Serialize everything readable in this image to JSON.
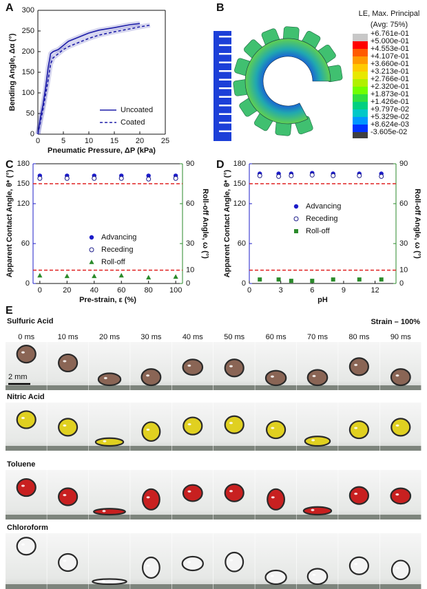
{
  "chart_data": [
    {
      "type": "line",
      "label": "A",
      "xlabel": "Pneumatic Pressure, ΔP (kPa)",
      "ylabel": "Bending Angle, Δα (°)",
      "xlim": [
        0,
        25
      ],
      "xticks": [
        0,
        5,
        10,
        15,
        20,
        25
      ],
      "ylim": [
        0,
        300
      ],
      "yticks": [
        0,
        50,
        100,
        150,
        200,
        250,
        300
      ],
      "legend": "lower right",
      "series": [
        {
          "name": "Uncoated",
          "color": "#1c1ca8",
          "dash": false,
          "x": [
            0,
            0.5,
            1,
            1.5,
            2,
            2.5,
            3,
            4,
            5,
            6,
            8,
            10,
            12,
            15,
            18,
            20
          ],
          "values": [
            0,
            40,
            70,
            110,
            160,
            195,
            200,
            205,
            215,
            225,
            235,
            245,
            252,
            258,
            265,
            268
          ]
        },
        {
          "name": "Coated",
          "color": "#1c1ca8",
          "dash": true,
          "x": [
            0,
            0.5,
            1,
            2,
            2.5,
            3,
            4,
            5,
            6,
            8,
            10,
            12,
            15,
            18,
            20,
            22
          ],
          "values": [
            0,
            30,
            60,
            130,
            170,
            185,
            195,
            205,
            212,
            222,
            232,
            240,
            248,
            255,
            260,
            264
          ]
        }
      ]
    },
    {
      "type": "scatter",
      "label": "C",
      "xlabel": "Pre-strain, ε (%)",
      "ylabel": "Apparent Contact Angle, θ* (°)",
      "y2label": "Roll-off Angle, ω (°)",
      "xlim": [
        -5,
        105
      ],
      "xticks": [
        0,
        20,
        40,
        60,
        80,
        100
      ],
      "ylim": [
        0,
        180
      ],
      "yticks": [
        0,
        60,
        120,
        180
      ],
      "y_color": "#1c1cc8",
      "y2lim": [
        0,
        90
      ],
      "y2ticks": [
        0,
        30,
        60,
        90
      ],
      "y2_color": "#2a8a2a",
      "legend": "center",
      "reference_lines": [
        {
          "axis": "y",
          "value": 150,
          "color": "#e02020"
        },
        {
          "axis": "y2",
          "value": 10,
          "color": "#e02020"
        }
      ],
      "x": [
        0,
        20,
        40,
        60,
        80,
        100
      ],
      "series": [
        {
          "name": "Advancing",
          "marker": "circle",
          "color": "#1c1cc8",
          "values": [
            162,
            162,
            162,
            162,
            162,
            162
          ]
        },
        {
          "name": "Receding",
          "marker": "open-circle",
          "color": "#1c1c8a",
          "values": [
            158,
            158,
            158,
            158,
            157,
            158
          ]
        },
        {
          "name": "Roll-off",
          "marker": "triangle",
          "color": "#2a8a2a",
          "axis": "y2",
          "values": [
            6,
            5.5,
            5.5,
            6,
            4.5,
            5
          ]
        }
      ]
    },
    {
      "type": "scatter",
      "label": "D",
      "xlabel": "pH",
      "ylabel": "Apparent Contact Angle, θ* (°)",
      "y2label": "Roll-off Angle, ω (°)",
      "xlim": [
        0,
        14
      ],
      "xticks": [
        0,
        3,
        6,
        9,
        12
      ],
      "ylim": [
        0,
        180
      ],
      "yticks": [
        0,
        60,
        120,
        180
      ],
      "y_color": "#1c1cc8",
      "y2lim": [
        0,
        90
      ],
      "y2ticks": [
        0,
        30,
        60,
        90
      ],
      "y2_color": "#2a8a2a",
      "legend": "upper center",
      "reference_lines": [
        {
          "axis": "y",
          "value": 150,
          "color": "#e02020"
        },
        {
          "axis": "y2",
          "value": 10,
          "color": "#e02020"
        }
      ],
      "x": [
        1,
        2.8,
        4,
        6,
        8,
        10.5,
        12.6
      ],
      "series": [
        {
          "name": "Advancing",
          "marker": "circle",
          "color": "#1c1cc8",
          "values": [
            165,
            165,
            165,
            166,
            165,
            165,
            165
          ]
        },
        {
          "name": "Receding",
          "marker": "open-circle",
          "color": "#1c1c8a",
          "values": [
            162,
            161,
            162,
            163,
            162,
            162,
            161
          ]
        },
        {
          "name": "Roll-off",
          "marker": "square",
          "color": "#2a8a2a",
          "axis": "y2",
          "values": [
            3,
            3,
            2,
            2,
            3,
            3,
            3
          ]
        }
      ]
    }
  ],
  "colormap": {
    "label": "B",
    "title": "LE, Max. Principal",
    "subtitle": "(Avg: 75%)",
    "levels": [
      {
        "value": 0.6761,
        "label": "+6.761e-01"
      },
      {
        "value": 0.5,
        "label": "+5.000e-01"
      },
      {
        "value": 0.4553,
        "label": "+4.553e-01"
      },
      {
        "value": 0.4107,
        "label": "+4.107e-01"
      },
      {
        "value": 0.366,
        "label": "+3.660e-01"
      },
      {
        "value": 0.3213,
        "label": "+3.213e-01"
      },
      {
        "value": 0.2766,
        "label": "+2.766e-01"
      },
      {
        "value": 0.232,
        "label": "+2.320e-01"
      },
      {
        "value": 0.1873,
        "label": "+1.873e-01"
      },
      {
        "value": 0.1426,
        "label": "+1.426e-01"
      },
      {
        "value": 0.09797,
        "label": "+9.797e-02"
      },
      {
        "value": 0.05329,
        "label": "+5.329e-02"
      },
      {
        "value": 0.008624,
        "label": "+8.624e-03"
      },
      {
        "value": -0.03605,
        "label": "-3.605e-02"
      }
    ],
    "colors": [
      "#c8c8c8",
      "#ff0000",
      "#ff5a00",
      "#ff9a00",
      "#ffca00",
      "#e8e800",
      "#b0f000",
      "#70ff00",
      "#30e040",
      "#00d080",
      "#00c8c8",
      "#0096ff",
      "#0032ff"
    ]
  },
  "sequences": {
    "label": "E",
    "strain": "Strain – 100%",
    "scale": "2 mm",
    "times": [
      "0 ms",
      "10 ms",
      "20 ms",
      "30 ms",
      "40 ms",
      "50 ms",
      "60 ms",
      "70 ms",
      "80 ms",
      "90 ms"
    ],
    "rows": [
      {
        "name": "Sulfuric Acid",
        "color": "#a8806e",
        "drop_color": "#8a6555"
      },
      {
        "name": "Nitric Acid",
        "color": "#c8b820",
        "drop_color": "#e0d020"
      },
      {
        "name": "Toluene",
        "color": "#c01818",
        "drop_color": "#c82020"
      },
      {
        "name": "Chloroform",
        "color": "#98a89e",
        "drop_color": "#f4f4f4"
      }
    ]
  }
}
